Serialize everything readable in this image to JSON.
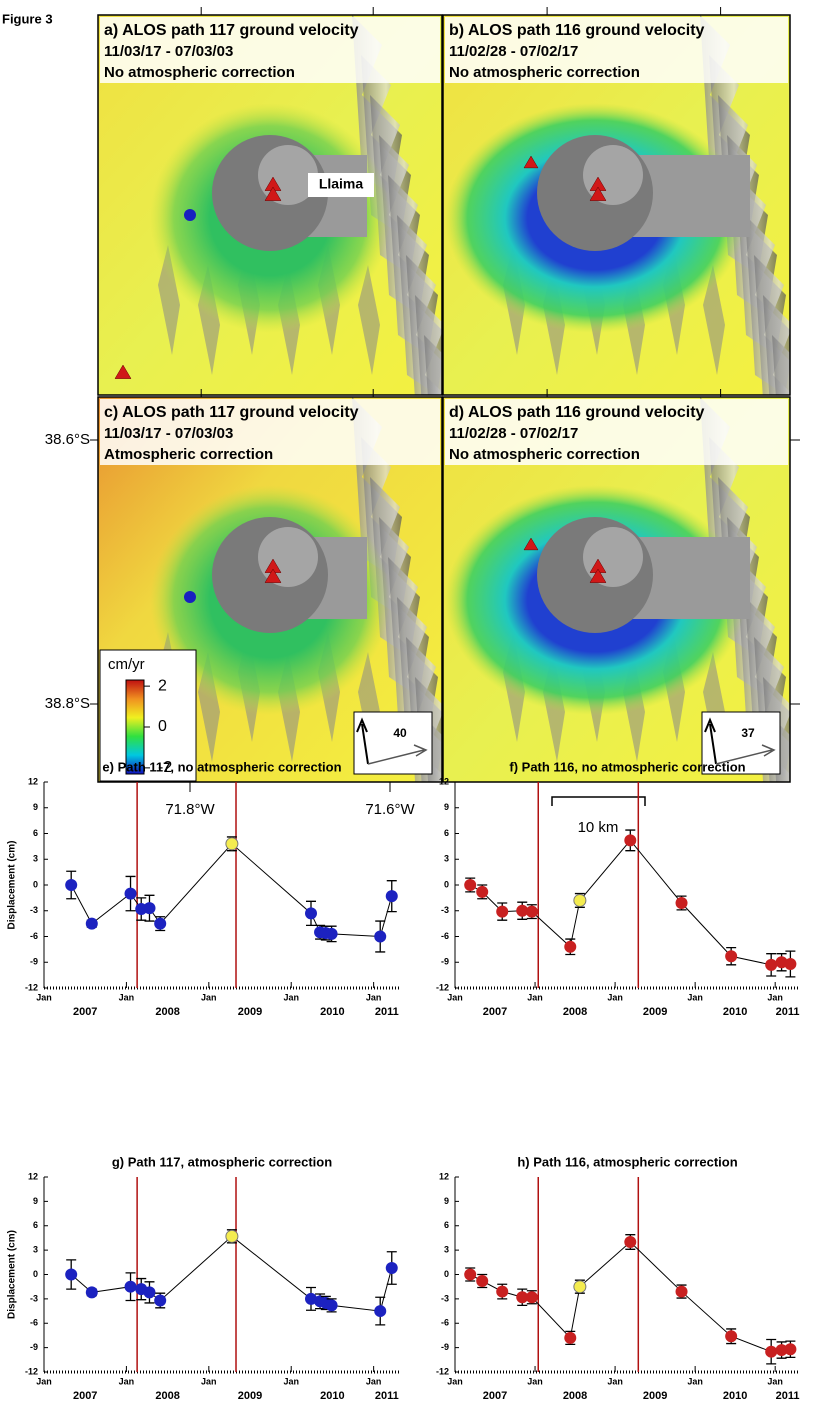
{
  "figure_label": "Figure 3",
  "maps": [
    {
      "title": "a) ALOS path 117 ground velocity",
      "dates": "11/03/17 - 07/03/03",
      "correction": "No atmospheric correction",
      "place_label": "Llaima"
    },
    {
      "title": "b) ALOS path 116 ground velocity",
      "dates": "11/02/28 - 07/02/17",
      "correction": "No atmospheric correction"
    },
    {
      "title": "c) ALOS path 117 ground velocity",
      "dates": "11/03/17 - 07/03/03",
      "correction": "Atmospheric correction",
      "look_label": "40"
    },
    {
      "title": "d) ALOS path 116 ground velocity",
      "dates": "11/02/28 - 07/02/17",
      "correction": "No atmospheric correction",
      "look_label": "37"
    }
  ],
  "map_axes": {
    "lat_labels": [
      "38.6°S",
      "38.8°S"
    ],
    "lon_labels": [
      "71.8°W",
      "71.6°W"
    ],
    "scale_label": "10 km"
  },
  "colorbar": {
    "label": "cm/yr",
    "lim": [
      -2.3,
      2.3
    ],
    "ticks": [
      2,
      0,
      -2
    ],
    "colors": [
      "#1010c0",
      "#00c8e0",
      "#30e040",
      "#f0f020",
      "#f09020",
      "#c01010"
    ]
  },
  "chart_data": [
    {
      "type": "line",
      "title": "e) Path 117, no atmospheric correction",
      "ylabel": "Displacement (cm)",
      "x": [
        2007.33,
        2007.58,
        2008.05,
        2008.18,
        2008.28,
        2008.41,
        2009.28,
        2010.24,
        2010.35,
        2010.42,
        2010.49,
        2011.08,
        2011.22
      ],
      "series": [
        {
          "color": "#1c22c0",
          "values": [
            0,
            -4.5,
            -1,
            -2.8,
            -2.7,
            -4.5,
            4.8,
            -3.3,
            -5.5,
            -5.6,
            -5.7,
            -6,
            -1.3
          ],
          "errors": [
            1.6,
            0.4,
            2,
            1.3,
            1.5,
            0.8,
            0.8,
            1.4,
            0.8,
            0.8,
            0.9,
            1.8,
            1.8
          ]
        }
      ],
      "highlight_index": 6,
      "highlight_color": "#f4ec50",
      "vlines": [
        2008.13,
        2009.33
      ],
      "vline_color": "#b01010",
      "xlim": [
        2007,
        2011.32
      ],
      "xticks": [
        {
          "value": 2007,
          "label": "Jan"
        },
        {
          "value": 2008,
          "label": "Jan"
        },
        {
          "value": 2009,
          "label": "Jan"
        },
        {
          "value": 2010,
          "label": "Jan"
        },
        {
          "value": 2011,
          "label": "Jan"
        }
      ],
      "year_labels": [
        2007,
        2008,
        2009,
        2010,
        2011
      ],
      "ylim": [
        -12,
        12
      ],
      "yticks": [
        -12,
        -9,
        -6,
        -3,
        0,
        3,
        6,
        9,
        12
      ]
    },
    {
      "type": "line",
      "title": "f) Path 116, no atmospheric correction",
      "x": [
        2007.19,
        2007.34,
        2007.59,
        2007.84,
        2007.96,
        2008.44,
        2008.56,
        2009.19,
        2009.83,
        2010.45,
        2010.95,
        2011.08,
        2011.19
      ],
      "series": [
        {
          "color": "#c82020",
          "values": [
            0,
            -0.8,
            -3.1,
            -3,
            -3.1,
            -7.2,
            -1.8,
            5.2,
            -2.1,
            -8.3,
            -9.3,
            -9,
            -9.2
          ],
          "errors": [
            0.8,
            0.8,
            1,
            1,
            0.8,
            0.9,
            0.8,
            1.2,
            0.8,
            1,
            1.3,
            1,
            1.5
          ]
        }
      ],
      "highlight_index": 6,
      "highlight_color": "#f4ec50",
      "vlines": [
        2008.04,
        2009.29
      ],
      "vline_color": "#b01010",
      "xlim": [
        2007,
        2011.31
      ],
      "xticks": [
        {
          "value": 2007,
          "label": "Jan"
        },
        {
          "value": 2008,
          "label": "Jan"
        },
        {
          "value": 2009,
          "label": "Jan"
        },
        {
          "value": 2010,
          "label": "Jan"
        },
        {
          "value": 2011,
          "label": "Jan"
        }
      ],
      "year_labels": [
        2007,
        2008,
        2009,
        2010,
        2011
      ],
      "ylim": [
        -12,
        12
      ],
      "yticks": [
        -12,
        -9,
        -6,
        -3,
        0,
        3,
        6,
        9,
        12
      ]
    },
    {
      "type": "line",
      "title": "g) Path 117, atmospheric correction",
      "ylabel": "Displacement (cm)",
      "x": [
        2007.33,
        2007.58,
        2008.05,
        2008.18,
        2008.28,
        2008.41,
        2009.28,
        2010.24,
        2010.35,
        2010.42,
        2010.49,
        2011.08,
        2011.22
      ],
      "series": [
        {
          "color": "#1c22c0",
          "values": [
            0,
            -2.2,
            -1.5,
            -1.8,
            -2.2,
            -3.2,
            4.7,
            -3,
            -3.3,
            -3.5,
            -3.8,
            -4.5,
            0.8
          ],
          "errors": [
            1.8,
            0.4,
            1.7,
            1.3,
            1.3,
            0.9,
            0.8,
            1.4,
            0.9,
            0.8,
            0.8,
            1.7,
            2
          ]
        }
      ],
      "highlight_index": 6,
      "highlight_color": "#f4ec50",
      "vlines": [
        2008.13,
        2009.33
      ],
      "vline_color": "#b01010",
      "xlim": [
        2007,
        2011.32
      ],
      "xticks": [
        {
          "value": 2007,
          "label": "Jan"
        },
        {
          "value": 2008,
          "label": "Jan"
        },
        {
          "value": 2009,
          "label": "Jan"
        },
        {
          "value": 2010,
          "label": "Jan"
        },
        {
          "value": 2011,
          "label": "Jan"
        }
      ],
      "year_labels": [
        2007,
        2008,
        2009,
        2010,
        2011
      ],
      "ylim": [
        -12,
        12
      ],
      "yticks": [
        -12,
        -9,
        -6,
        -3,
        0,
        3,
        6,
        9,
        12
      ]
    },
    {
      "type": "line",
      "title": "h) Path 116, atmospheric correction",
      "x": [
        2007.19,
        2007.34,
        2007.59,
        2007.84,
        2007.96,
        2008.44,
        2008.56,
        2009.19,
        2009.83,
        2010.45,
        2010.95,
        2011.08,
        2011.19
      ],
      "series": [
        {
          "color": "#c82020",
          "values": [
            0,
            -0.8,
            -2.1,
            -2.8,
            -2.8,
            -7.8,
            -1.5,
            4,
            -2.1,
            -7.6,
            -9.5,
            -9.3,
            -9.2
          ],
          "errors": [
            0.8,
            0.8,
            0.9,
            1,
            0.8,
            0.8,
            0.8,
            0.9,
            0.8,
            0.9,
            1.5,
            1,
            1
          ]
        }
      ],
      "highlight_index": 6,
      "highlight_color": "#f4ec50",
      "vlines": [
        2008.04,
        2009.29
      ],
      "vline_color": "#b01010",
      "xlim": [
        2007,
        2011.31
      ],
      "xticks": [
        {
          "value": 2007,
          "label": "Jan"
        },
        {
          "value": 2008,
          "label": "Jan"
        },
        {
          "value": 2009,
          "label": "Jan"
        },
        {
          "value": 2010,
          "label": "Jan"
        },
        {
          "value": 2011,
          "label": "Jan"
        }
      ],
      "year_labels": [
        2007,
        2008,
        2009,
        2010,
        2011
      ],
      "ylim": [
        -12,
        12
      ],
      "yticks": [
        -12,
        -9,
        -6,
        -3,
        0,
        3,
        6,
        9,
        12
      ]
    }
  ]
}
